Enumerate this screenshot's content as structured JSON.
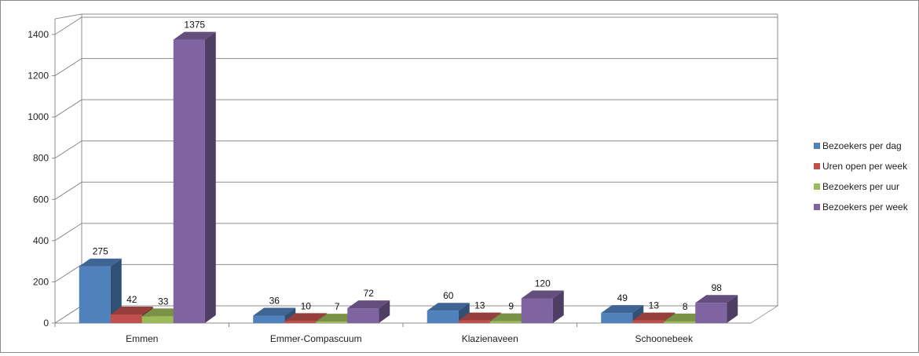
{
  "chart_data": {
    "type": "bar",
    "title": "",
    "xlabel": "",
    "ylabel": "",
    "ylim": [
      0,
      1400
    ],
    "ytick_step": 200,
    "grid": true,
    "legend_position": "right",
    "categories": [
      "Emmen",
      "Emmer-Compascuum",
      "Klazienaveen",
      "Schoonebeek"
    ],
    "series": [
      {
        "name": "Bezoekers per dag",
        "values": [
          275,
          36,
          60,
          49
        ],
        "color": "#4f81bd"
      },
      {
        "name": "Uren open per week",
        "values": [
          42,
          10,
          13,
          13
        ],
        "color": "#c0504d"
      },
      {
        "name": "Bezoekers per uur",
        "values": [
          33,
          7,
          9,
          8
        ],
        "color": "#9bbb59"
      },
      {
        "name": "Bezoekers per week",
        "values": [
          1375,
          72,
          120,
          98
        ],
        "color": "#8064a2"
      }
    ]
  }
}
